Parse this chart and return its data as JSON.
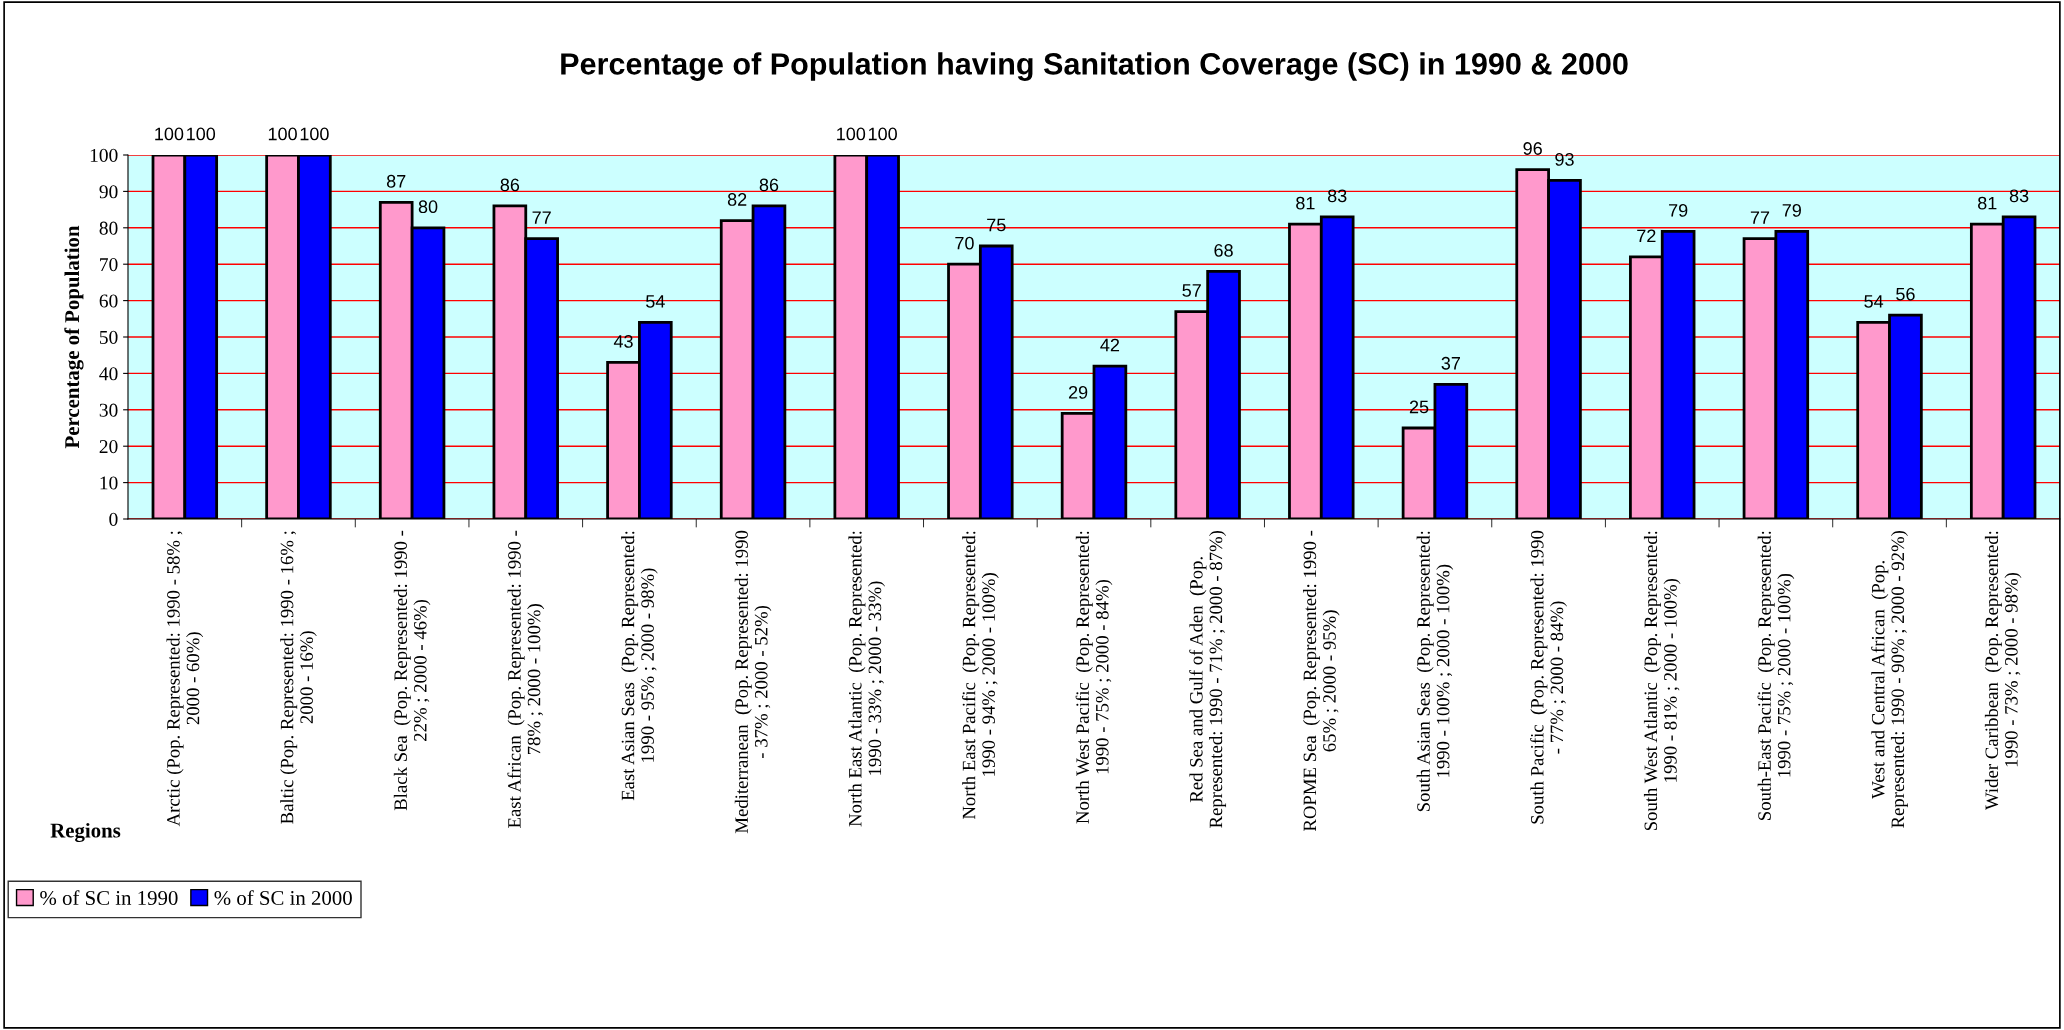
{
  "chart_data": {
    "type": "bar",
    "title": "Percentage of Population having Sanitation Coverage (SC) in 1990 & 2000",
    "xlabel": "Regions",
    "ylabel": "Percentage of Population",
    "categories": [
      "Arctic (Pop. Represented: 1990 - 58% ;\n2000 - 60%)",
      "Baltic (Pop. Represented: 1990 - 16% ;\n2000 - 16%)",
      "Black Sea  (Pop. Represented: 1990 -\n22% ; 2000 - 46%)",
      "East African  (Pop. Represented: 1990 -\n78% ; 2000 - 100%)",
      "East Asian Seas  (Pop. Represented:\n1990 - 95% ; 2000 - 98%)",
      "Mediterranean  (Pop. Represented: 1990\n- 37% ; 2000 - 52%)",
      "North East Atlantic  (Pop. Represented:\n1990 - 33% ; 2000 - 33%)",
      "North East Pacific  (Pop. Represented:\n1990 - 94% ; 2000 - 100%)",
      "North West Pacific  (Pop. Represented:\n1990 - 75% ; 2000 - 84%)",
      "Red Sea and Gulf of Aden  (Pop.\nRepresented: 1990 - 71% ; 2000 - 87%)",
      "ROPME Sea  (Pop. Represented: 1990 -\n65% ; 2000 - 95%)",
      "South Asian Seas  (Pop. Represented:\n1990 - 100% ; 2000 - 100%)",
      "South Pacific  (Pop. Represented: 1990\n- 77% ; 2000 - 84%)",
      "South West Atlantic  (Pop. Represented:\n1990 - 81% ; 2000 - 100%)",
      "South-East Pacific  (Pop. Represented:\n1990 - 75% ; 2000 - 100%)",
      "West and Central African  (Pop.\nRepresented: 1990 - 90% ; 2000 - 92%)",
      "Wider Caribbean  (Pop. Represented:\n1990 - 73% ; 2000 - 98%)"
    ],
    "series": [
      {
        "name": "% of SC in 1990",
        "color": "#ff99cc",
        "values": [
          100,
          100,
          87,
          86,
          43,
          82,
          100,
          70,
          29,
          57,
          81,
          25,
          96,
          72,
          77,
          54,
          81
        ]
      },
      {
        "name": "% of SC in 2000",
        "color": "#0000ff",
        "values": [
          100,
          100,
          80,
          77,
          54,
          86,
          100,
          75,
          42,
          68,
          83,
          37,
          93,
          79,
          79,
          56,
          83
        ]
      }
    ],
    "ylim": [
      0,
      100
    ],
    "yticks": [
      0,
      10,
      20,
      30,
      40,
      50,
      60,
      70,
      80,
      90,
      100
    ],
    "grid": "y",
    "legend": "bottom left",
    "data_labels": true
  }
}
